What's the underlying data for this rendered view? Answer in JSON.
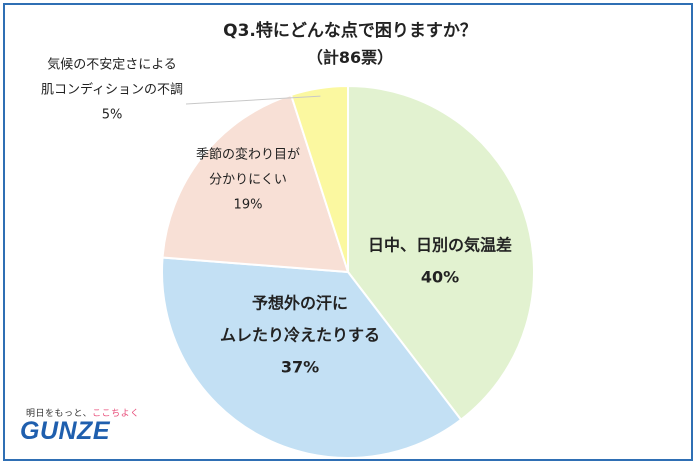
{
  "title": "Q3.特にどんな点で困りますか？",
  "subtitle": "（計86票）",
  "brand": {
    "tagline_before": "明日をもっと、",
    "tagline_heart": "ここちよく",
    "logo": "GUNZE"
  },
  "chart_data": {
    "type": "pie",
    "total_votes": 86,
    "slices": [
      {
        "label_lines": [
          "日中、日別の気温差"
        ],
        "percent_label": "40%",
        "value": 40,
        "color": "#e2f2d0",
        "bold": true
      },
      {
        "label_lines": [
          "予想外の汗に",
          "ムレたり冷えたりする"
        ],
        "percent_label": "37%",
        "value": 37,
        "color": "#c3e0f4",
        "bold": true
      },
      {
        "label_lines": [
          "季節の変わり目が",
          "分かりにくい"
        ],
        "percent_label": "19%",
        "value": 19,
        "color": "#f8e0d6",
        "bold": false
      },
      {
        "label_lines": [
          "気候の不安定さによる",
          "肌コンディションの不調"
        ],
        "percent_label": "5%",
        "value": 5,
        "color": "#fbf8a0",
        "bold": false
      }
    ]
  }
}
